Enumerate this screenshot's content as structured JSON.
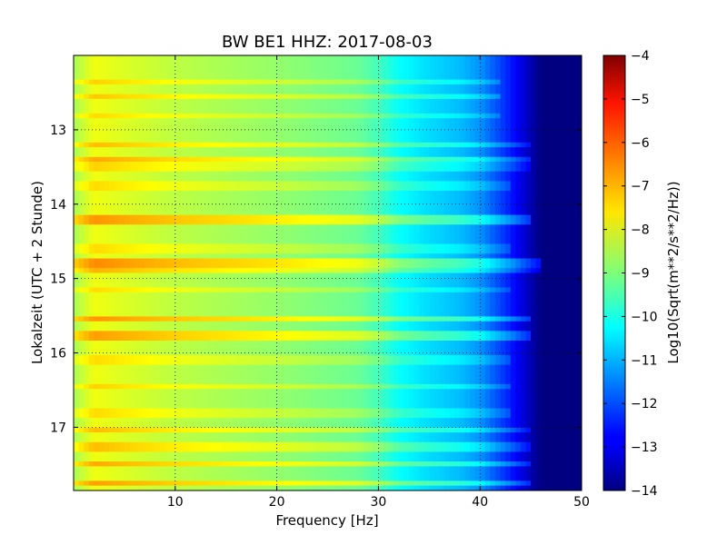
{
  "chart_data": {
    "type": "heatmap",
    "title": "BW BE1 HHZ: 2017-08-03",
    "xlabel": "Frequency [Hz]",
    "ylabel": "Lokalzeit (UTC + 2 Stunde)",
    "colorbar_label": "Log10(Sqrt(m**2/s**2/Hz))",
    "colormap": "jet",
    "xlim": [
      0,
      50
    ],
    "ylim": [
      12.0,
      17.85
    ],
    "y_inverted": true,
    "clim": [
      -14,
      -4
    ],
    "grid": "dotted",
    "x_ticks": [
      10,
      20,
      30,
      40,
      50
    ],
    "y_ticks": [
      13,
      14,
      15,
      16,
      17
    ],
    "colorbar_ticks": [
      -4,
      -5,
      -6,
      -7,
      -8,
      -9,
      -10,
      -11,
      -12,
      -13,
      -14
    ],
    "baseline_profile": {
      "frequency_hz": [
        0,
        2,
        5,
        10,
        20,
        28,
        30,
        32,
        35,
        38,
        40,
        43,
        46,
        50
      ],
      "level": [
        -8.6,
        -7.9,
        -8.1,
        -8.4,
        -8.8,
        -9.2,
        -9.6,
        -10.2,
        -10.6,
        -10.9,
        -11.3,
        -12.5,
        -14,
        -14
      ]
    },
    "horizontal_bands": [
      {
        "time": 12.35,
        "delta": 0.6,
        "fmax": 42
      },
      {
        "time": 12.55,
        "delta": 0.7,
        "fmax": 42
      },
      {
        "time": 12.8,
        "delta": 0.5,
        "fmax": 42
      },
      {
        "time": 13.2,
        "delta": 0.8,
        "fmax": 45
      },
      {
        "time": 13.4,
        "delta": 1.0,
        "fmax": 45
      },
      {
        "time": 13.5,
        "delta": 0.6,
        "fmax": 45
      },
      {
        "time": 13.75,
        "delta": 0.5,
        "fmax": 43
      },
      {
        "time": 14.2,
        "delta": 1.2,
        "fmax": 45
      },
      {
        "time": 14.6,
        "delta": 0.5,
        "fmax": 43
      },
      {
        "time": 14.8,
        "delta": 1.3,
        "fmax": 46
      },
      {
        "time": 14.9,
        "delta": 0.9,
        "fmax": 46
      },
      {
        "time": 15.15,
        "delta": 0.5,
        "fmax": 43
      },
      {
        "time": 15.55,
        "delta": 1.2,
        "fmax": 45
      },
      {
        "time": 15.78,
        "delta": 1.1,
        "fmax": 45
      },
      {
        "time": 16.1,
        "delta": 0.5,
        "fmax": 43
      },
      {
        "time": 16.45,
        "delta": 0.6,
        "fmax": 43
      },
      {
        "time": 16.8,
        "delta": 0.5,
        "fmax": 43
      },
      {
        "time": 17.05,
        "delta": 0.8,
        "fmax": 45
      },
      {
        "time": 17.25,
        "delta": 0.8,
        "fmax": 45
      },
      {
        "time": 17.5,
        "delta": 1.0,
        "fmax": 45
      },
      {
        "time": 17.75,
        "delta": 1.1,
        "fmax": 45
      }
    ]
  }
}
